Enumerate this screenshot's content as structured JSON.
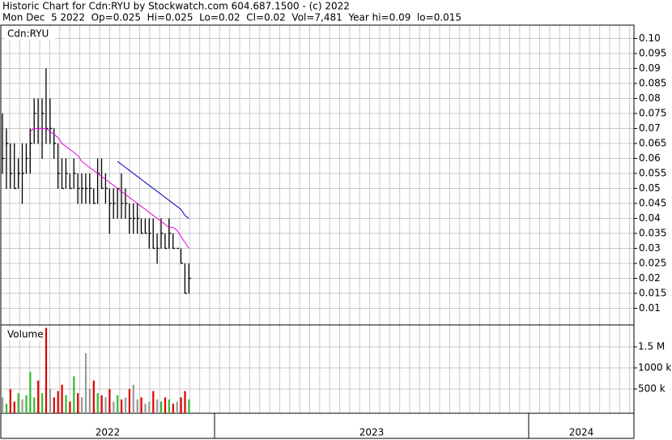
{
  "chart_data": {
    "type": "ohlc",
    "title": "Historic Chart for Cdn:RYU by Stockwatch.com 604.687.1500 - (c) 2022",
    "subtitle": "Mon Dec  5 2022  Op=0.025  Hi=0.025  Lo=0.02  Cl=0.02  Vol=7,481  Year hi=0.09  lo=0.015",
    "symbol_label": "Cdn:RYU",
    "volume_label": "Volume",
    "years": [
      "2022",
      "2023",
      "2024"
    ],
    "high": [
      0.075,
      0.07,
      0.065,
      0.065,
      0.06,
      0.065,
      0.065,
      0.07,
      0.08,
      0.08,
      0.08,
      0.09,
      0.08,
      0.07,
      0.065,
      0.06,
      0.06,
      0.055,
      0.06,
      0.055,
      0.055,
      0.055,
      0.055,
      0.05,
      0.06,
      0.06,
      0.055,
      0.05,
      0.05,
      0.05,
      0.055,
      0.05,
      0.045,
      0.045,
      0.045,
      0.04,
      0.04,
      0.04,
      0.04,
      0.035,
      0.04,
      0.035,
      0.04,
      0.035,
      0.03,
      0.03,
      0.025,
      0.025
    ],
    "low": [
      0.055,
      0.05,
      0.05,
      0.05,
      0.05,
      0.045,
      0.055,
      0.055,
      0.065,
      0.065,
      0.06,
      0.065,
      0.065,
      0.06,
      0.05,
      0.05,
      0.05,
      0.05,
      0.05,
      0.045,
      0.045,
      0.045,
      0.045,
      0.045,
      0.045,
      0.05,
      0.045,
      0.035,
      0.04,
      0.04,
      0.04,
      0.04,
      0.035,
      0.035,
      0.035,
      0.035,
      0.035,
      0.03,
      0.03,
      0.025,
      0.03,
      0.03,
      0.03,
      0.03,
      0.03,
      0.025,
      0.015,
      0.015
    ],
    "close": [
      0.06,
      0.065,
      0.055,
      0.05,
      0.055,
      0.055,
      0.06,
      0.065,
      0.075,
      0.07,
      0.075,
      0.07,
      0.07,
      0.065,
      0.055,
      0.05,
      0.055,
      0.05,
      0.055,
      0.05,
      0.05,
      0.05,
      0.05,
      0.045,
      0.055,
      0.05,
      0.05,
      0.045,
      0.045,
      0.05,
      0.045,
      0.045,
      0.04,
      0.04,
      0.04,
      0.035,
      0.035,
      0.035,
      0.03,
      0.03,
      0.035,
      0.03,
      0.035,
      0.03,
      0.03,
      0.025,
      0.015,
      0.02
    ],
    "moving_averages": [
      {
        "color": "#e000e0",
        "values": [
          null,
          null,
          null,
          null,
          null,
          null,
          null,
          0.069,
          0.07,
          0.07,
          0.07,
          0.07,
          0.069,
          0.068,
          0.067,
          0.065,
          0.064,
          0.063,
          0.062,
          0.061,
          0.059,
          0.058,
          0.057,
          0.056,
          0.055,
          0.054,
          0.053,
          0.052,
          0.051,
          0.05,
          0.049,
          0.048,
          0.047,
          0.046,
          0.045,
          0.044,
          0.043,
          0.042,
          0.041,
          0.04,
          0.039,
          0.038,
          0.037,
          0.037,
          0.036,
          0.034,
          0.032,
          0.03
        ]
      },
      {
        "color": "#0000c0",
        "values": [
          null,
          null,
          null,
          null,
          null,
          null,
          null,
          null,
          null,
          null,
          null,
          null,
          null,
          null,
          null,
          null,
          null,
          null,
          null,
          null,
          null,
          null,
          null,
          null,
          null,
          null,
          null,
          null,
          null,
          0.059,
          0.058,
          0.057,
          0.056,
          0.055,
          0.054,
          0.053,
          0.052,
          0.051,
          0.05,
          0.049,
          0.048,
          0.047,
          0.046,
          0.045,
          0.044,
          0.043,
          0.041,
          0.04
        ]
      }
    ],
    "volume": [
      300000,
      150000,
      500000,
      200000,
      400000,
      250000,
      350000,
      900000,
      300000,
      700000,
      400000,
      1950000,
      500000,
      300000,
      450000,
      600000,
      350000,
      200000,
      800000,
      400000,
      300000,
      1350000,
      500000,
      700000,
      400000,
      350000,
      300000,
      500000,
      200000,
      350000,
      250000,
      300000,
      500000,
      600000,
      250000,
      300000,
      150000,
      200000,
      450000,
      250000,
      200000,
      300000,
      250000,
      150000,
      200000,
      300000,
      450000,
      250000
    ],
    "bar_color": "#000000",
    "up_color": "#33bb33",
    "down_color": "#dd0000",
    "flat_color": "#999999",
    "grid": true,
    "ylim": [
      0.005,
      0.105
    ],
    "yticks": [
      {
        "value": 0.1,
        "label": "0.10"
      },
      0.095,
      0.09,
      0.085,
      0.08,
      0.075,
      0.07,
      0.065,
      0.06,
      0.055,
      0.05,
      0.045,
      0.04,
      0.035,
      0.03,
      0.025,
      0.02,
      0.015,
      0.01
    ],
    "y2lim": [
      0,
      2000000
    ],
    "y2ticks": [
      {
        "value": 500000,
        "label": "500 k"
      },
      {
        "value": 1000000,
        "label": "1000 k"
      },
      {
        "value": 1500000,
        "label": "1.5 M"
      }
    ]
  }
}
